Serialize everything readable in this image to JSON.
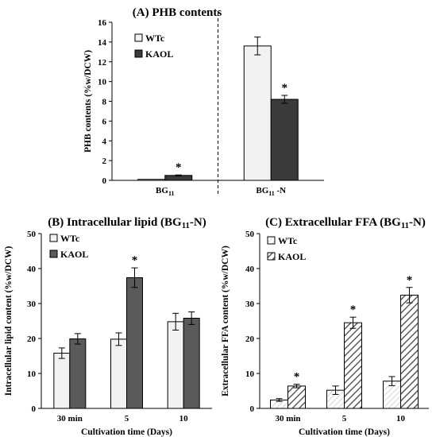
{
  "chart_data": [
    {
      "type": "bar",
      "title": "(A) PHB contents",
      "ylabel": "PHB contents (%w/DCW)",
      "xlabel": "",
      "categories": [
        {
          "base": "BG",
          "sub": "11",
          "suffix": ""
        },
        {
          "base": "BG",
          "sub": "11",
          "suffix": " -N"
        }
      ],
      "ylim": [
        0,
        16
      ],
      "yticks": [
        0,
        2,
        4,
        6,
        8,
        10,
        12,
        14,
        16
      ],
      "divider_after_category": 0,
      "legend_position": "top-left",
      "series": [
        {
          "name": "WTc",
          "values": [
            0.1,
            13.6
          ],
          "errors": [
            0,
            0.9
          ],
          "significant": [
            false,
            false
          ],
          "fill": "#f2f2f2"
        },
        {
          "name": "KAOL",
          "values": [
            0.5,
            8.2
          ],
          "errors": [
            0.05,
            0.4
          ],
          "significant": [
            true,
            true
          ],
          "fill": "#3a3a3a"
        }
      ],
      "significance_marker": "*"
    },
    {
      "type": "bar",
      "title": {
        "base": "(B) Intracellular lipid (BG",
        "sub": "11",
        "suffix": "-N)"
      },
      "ylabel": "Intracellular lipid content (%w/DCW)",
      "xlabel": "Cultivation time (Days)",
      "categories": [
        "30 min",
        "5",
        "10"
      ],
      "ylim": [
        0,
        50
      ],
      "yticks": [
        0,
        10,
        20,
        30,
        40,
        50
      ],
      "legend_position": "top-left",
      "series": [
        {
          "name": "WTc",
          "values": [
            15.8,
            19.8,
            24.8
          ],
          "errors": [
            1.5,
            1.8,
            2.4
          ],
          "significant": [
            false,
            false,
            false
          ],
          "fill": "#f2f2f2"
        },
        {
          "name": "KAOL",
          "values": [
            19.9,
            37.4,
            25.8
          ],
          "errors": [
            1.5,
            2.8,
            1.8
          ],
          "significant": [
            false,
            true,
            false
          ],
          "fill": "#5a5a5a"
        }
      ],
      "significance_marker": "*"
    },
    {
      "type": "bar",
      "title": {
        "base": "(C) Extracellular FFA (BG",
        "sub": "11",
        "suffix": "-N)"
      },
      "ylabel": "Extracellular FFA content (%w/DCW)",
      "xlabel": "Cultivation time (Days)",
      "categories": [
        "30 min",
        "5",
        "10"
      ],
      "ylim": [
        0,
        50
      ],
      "yticks": [
        0,
        10,
        20,
        30,
        40,
        50
      ],
      "legend_position": "top-left",
      "series": [
        {
          "name": "WTc",
          "values": [
            2.4,
            5.2,
            7.8
          ],
          "errors": [
            0.4,
            1.2,
            1.3
          ],
          "significant": [
            false,
            false,
            false
          ],
          "pattern": "light-hatch"
        },
        {
          "name": "KAOL",
          "values": [
            6.4,
            24.5,
            32.4
          ],
          "errors": [
            0.5,
            1.6,
            2.2
          ],
          "significant": [
            true,
            true,
            true
          ],
          "pattern": "dark-hatch"
        }
      ],
      "significance_marker": "*"
    }
  ]
}
